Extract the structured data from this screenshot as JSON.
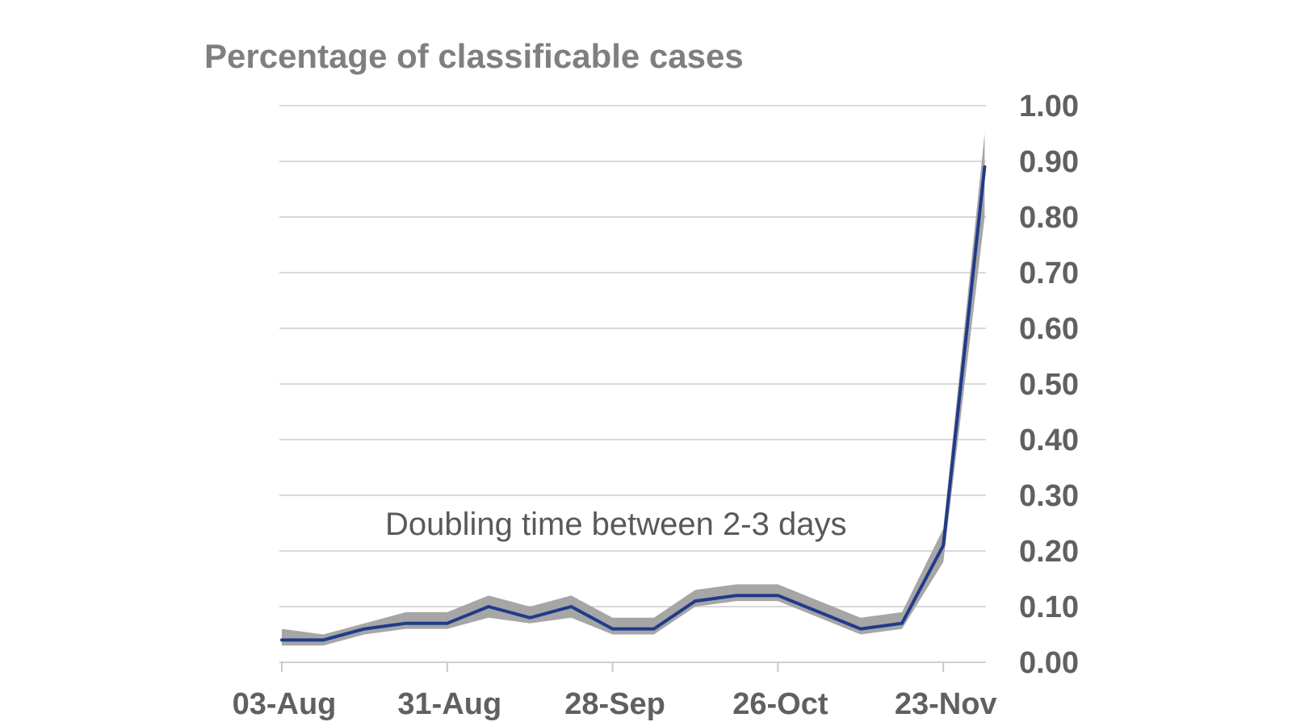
{
  "chart_data": {
    "type": "line",
    "title": "Percentage of classificable cases",
    "xlabel": "",
    "ylabel": "",
    "x": [
      "03-Aug",
      "10-Aug",
      "17-Aug",
      "24-Aug",
      "31-Aug",
      "07-Sep",
      "14-Sep",
      "21-Sep",
      "28-Sep",
      "05-Oct",
      "12-Oct",
      "19-Oct",
      "26-Oct",
      "02-Nov",
      "09-Nov",
      "16-Nov",
      "23-Nov",
      "30-Nov"
    ],
    "x_tick_labels": [
      "03-Aug",
      "31-Aug",
      "28-Sep",
      "26-Oct",
      "23-Nov"
    ],
    "y_tick_labels": [
      "0.00",
      "0.10",
      "0.20",
      "0.30",
      "0.40",
      "0.50",
      "0.60",
      "0.70",
      "0.80",
      "0.90",
      "1.00"
    ],
    "ylim": [
      0,
      1
    ],
    "y_axis_position": "right",
    "grid": true,
    "series": [
      {
        "values": [
          0.04,
          0.04,
          0.06,
          0.07,
          0.07,
          0.1,
          0.08,
          0.1,
          0.06,
          0.06,
          0.11,
          0.12,
          0.12,
          0.09,
          0.06,
          0.07,
          0.21,
          0.89
        ],
        "color": "#1f3b8a"
      }
    ],
    "band": {
      "lower": [
        0.03,
        0.03,
        0.05,
        0.06,
        0.06,
        0.08,
        0.07,
        0.08,
        0.05,
        0.05,
        0.1,
        0.11,
        0.11,
        0.08,
        0.05,
        0.06,
        0.18,
        0.8
      ],
      "upper": [
        0.06,
        0.05,
        0.07,
        0.09,
        0.09,
        0.12,
        0.1,
        0.12,
        0.08,
        0.08,
        0.13,
        0.14,
        0.14,
        0.11,
        0.08,
        0.09,
        0.24,
        0.95
      ],
      "color": "#a6a6a6"
    },
    "annotations": [
      {
        "text": "Doubling time between 2-3 days"
      }
    ]
  }
}
